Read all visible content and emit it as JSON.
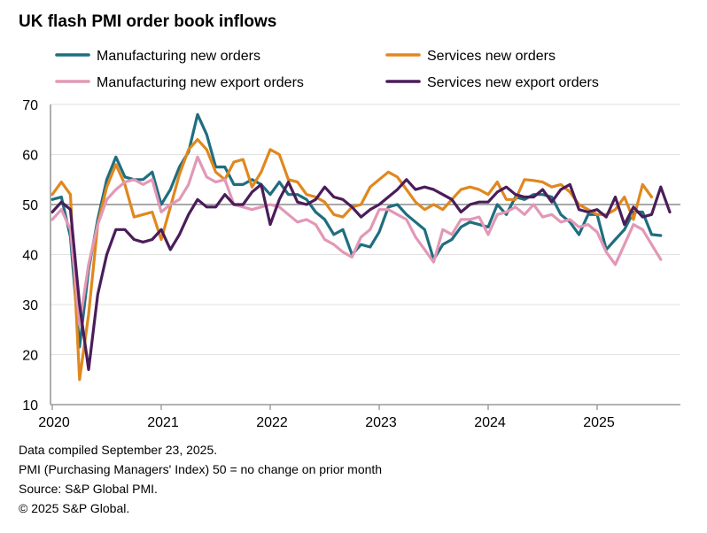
{
  "title": "UK flash PMI order book inflows",
  "notes": [
    "Data compiled September 23, 2025.",
    "PMI (Purchasing Managers' Index) 50 = no change on prior month",
    "Source: S&P Global PMI.",
    "© 2025 S&P Global."
  ],
  "chart_data": {
    "type": "line",
    "title": "UK flash PMI order book inflows",
    "xlabel": "",
    "ylabel": "",
    "ylim": [
      10,
      70
    ],
    "yticks": [
      10,
      20,
      30,
      40,
      50,
      60,
      70
    ],
    "xticks": [
      "2020",
      "2021",
      "2022",
      "2023",
      "2024",
      "2025"
    ],
    "x_start": "2020-01",
    "x_end": "2025-09",
    "reference_line": 50,
    "grid": "horizontal",
    "legend_position": "top",
    "series": [
      {
        "name": "Manufacturing new orders",
        "color": "#1f6e7f",
        "values": [
          51.0,
          51.5,
          43.5,
          21.5,
          37.0,
          47.0,
          55.0,
          59.5,
          55.5,
          55.0,
          55.0,
          56.5,
          50.0,
          53.0,
          57.5,
          60.5,
          68.0,
          64.0,
          57.5,
          57.5,
          54.0,
          54.0,
          55.0,
          54.0,
          52.0,
          54.5,
          52.0,
          52.0,
          51.0,
          48.5,
          47.0,
          44.0,
          45.0,
          40.0,
          42.0,
          41.5,
          44.5,
          49.5,
          50.0,
          48.0,
          46.5,
          45.0,
          39.0,
          42.0,
          43.0,
          45.5,
          46.5,
          46.0,
          45.5,
          50.0,
          48.0,
          51.5,
          51.0,
          52.0,
          52.0,
          51.5,
          48.0,
          46.5,
          44.0,
          48.0,
          48.0,
          41.0,
          43.0,
          45.0,
          48.5,
          48.5,
          44.0,
          43.8
        ]
      },
      {
        "name": "Services new orders",
        "color": "#e0881e",
        "values": [
          52.0,
          54.5,
          52.0,
          15.0,
          28.0,
          46.0,
          53.5,
          58.0,
          54.0,
          47.5,
          48.0,
          48.5,
          43.0,
          49.5,
          56.0,
          61.0,
          63.0,
          61.0,
          56.5,
          55.0,
          58.5,
          59.0,
          53.5,
          56.5,
          61.0,
          60.0,
          55.0,
          54.5,
          52.0,
          51.5,
          50.5,
          48.0,
          47.5,
          49.5,
          50.0,
          53.5,
          55.0,
          56.5,
          55.5,
          53.0,
          50.5,
          49.0,
          50.0,
          49.0,
          51.0,
          53.0,
          53.5,
          53.0,
          52.0,
          54.5,
          51.0,
          51.0,
          55.0,
          54.8,
          54.5,
          53.5,
          54.0,
          52.5,
          50.0,
          49.0,
          48.0,
          48.0,
          49.0,
          51.5,
          47.0,
          54.0,
          51.5
        ]
      },
      {
        "name": "Manufacturing new export orders",
        "color": "#e298b6",
        "values": [
          47.0,
          49.0,
          45.0,
          26.0,
          38.0,
          46.0,
          51.0,
          53.0,
          54.5,
          55.0,
          54.0,
          55.0,
          48.5,
          50.0,
          51.0,
          54.0,
          59.5,
          55.5,
          54.5,
          55.0,
          50.0,
          49.5,
          49.0,
          49.5,
          50.0,
          49.5,
          48.0,
          46.5,
          47.0,
          46.0,
          43.0,
          42.0,
          40.5,
          39.5,
          43.5,
          45.0,
          49.0,
          49.0,
          48.0,
          47.0,
          43.5,
          41.0,
          38.5,
          45.0,
          44.0,
          47.0,
          47.0,
          47.5,
          44.0,
          48.0,
          48.5,
          49.5,
          48.0,
          50.0,
          47.5,
          48.0,
          46.5,
          47.0,
          45.5,
          46.0,
          44.5,
          40.5,
          38.0,
          42.0,
          46.0,
          45.0,
          42.0,
          39.0
        ]
      },
      {
        "name": "Services new export orders",
        "color": "#4a1d5a",
        "values": [
          48.5,
          50.5,
          49.0,
          30.0,
          17.0,
          32.0,
          40.0,
          45.0,
          45.0,
          43.0,
          42.5,
          43.0,
          45.0,
          41.0,
          44.0,
          48.0,
          51.0,
          49.5,
          49.5,
          52.0,
          50.0,
          50.0,
          52.5,
          54.0,
          46.0,
          51.0,
          54.5,
          50.5,
          50.0,
          51.0,
          53.5,
          51.5,
          51.0,
          49.5,
          47.5,
          49.0,
          50.0,
          51.5,
          53.0,
          55.0,
          53.0,
          53.5,
          53.0,
          52.0,
          51.0,
          48.5,
          50.0,
          50.5,
          50.5,
          52.5,
          53.5,
          52.0,
          51.5,
          51.5,
          53.0,
          50.5,
          53.0,
          54.0,
          49.0,
          48.5,
          49.0,
          47.5,
          51.5,
          46.0,
          49.5,
          47.5,
          48.0,
          53.5,
          48.5
        ]
      }
    ]
  }
}
